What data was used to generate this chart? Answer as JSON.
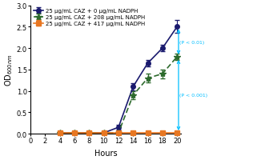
{
  "series": [
    {
      "label": "25 μg/mL CAZ + 0 μg/mL NADPH",
      "x": [
        4,
        6,
        8,
        10,
        12,
        14,
        16,
        18,
        20
      ],
      "y": [
        0.02,
        0.02,
        0.02,
        0.02,
        0.15,
        1.1,
        1.65,
        2.0,
        2.5
      ],
      "yerr": [
        0.01,
        0.01,
        0.01,
        0.01,
        0.05,
        0.08,
        0.08,
        0.08,
        0.15
      ],
      "color": "#1a1a6e",
      "linestyle": "-",
      "marker": "o",
      "markersize": 4,
      "linewidth": 1.2,
      "markerfacecolor": "#1a1a6e",
      "dashes": null
    },
    {
      "label": "25 μg/mL CAZ + 208 μg/mL NADPH",
      "x": [
        4,
        6,
        8,
        10,
        12,
        14,
        16,
        18,
        20
      ],
      "y": [
        0.02,
        0.02,
        0.02,
        0.02,
        0.02,
        0.9,
        1.3,
        1.4,
        1.8
      ],
      "yerr": [
        0.01,
        0.01,
        0.01,
        0.01,
        0.01,
        0.1,
        0.1,
        0.1,
        0.08
      ],
      "color": "#2d6a2d",
      "linestyle": "--",
      "marker": "*",
      "markersize": 6,
      "linewidth": 1.2,
      "markerfacecolor": "#2d6a2d",
      "dashes": [
        4,
        2
      ]
    },
    {
      "label": "25 μg/mL CAZ + 417 μg/mL NADPH",
      "x": [
        4,
        6,
        8,
        10,
        12,
        14,
        16,
        18,
        20
      ],
      "y": [
        0.02,
        0.02,
        0.02,
        0.02,
        0.02,
        0.02,
        0.02,
        0.02,
        0.02
      ],
      "yerr": [
        0.01,
        0.01,
        0.01,
        0.01,
        0.01,
        0.01,
        0.01,
        0.01,
        0.01
      ],
      "color": "#e87722",
      "linestyle": "-",
      "marker": "s",
      "markersize": 4,
      "linewidth": 1.2,
      "markerfacecolor": "#e87722",
      "dashes": null
    }
  ],
  "xlabel": "Hours",
  "ylabel": "OD$_{600nm}$",
  "xlim": [
    0,
    20.5
  ],
  "ylim": [
    0,
    3.0
  ],
  "xticks": [
    0,
    2,
    4,
    6,
    8,
    10,
    12,
    14,
    16,
    18,
    20
  ],
  "yticks": [
    0.0,
    0.5,
    1.0,
    1.5,
    2.0,
    2.5,
    3.0
  ],
  "annotation1_text": "(P < 0.01)",
  "annotation2_text": "(P < 0.001)",
  "arrow_color": "#00bfff",
  "annotation_color": "#00bfff",
  "background_color": "#ffffff",
  "legend_fontsize": 5.0,
  "axis_fontsize": 7,
  "tick_fontsize": 6
}
